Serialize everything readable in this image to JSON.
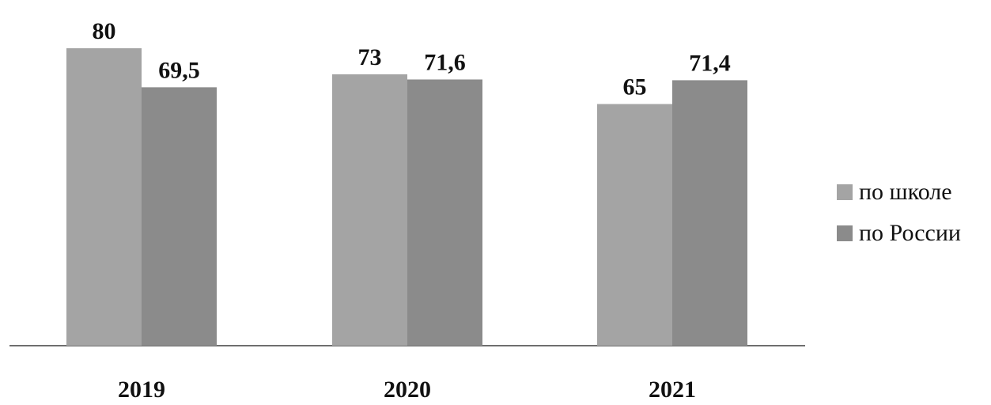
{
  "colors": {
    "school": "#a4a4a4",
    "russia": "#8b8b8b",
    "axis": "#6f6f6f",
    "text": "#111111"
  },
  "chart_data": {
    "type": "bar",
    "categories": [
      "2019",
      "2020",
      "2021"
    ],
    "series": [
      {
        "name": "по школе",
        "values": [
          80,
          73,
          65
        ],
        "labels": [
          "80",
          "73",
          "65"
        ]
      },
      {
        "name": "по России",
        "values": [
          69.5,
          71.6,
          71.4
        ],
        "labels": [
          "69,5",
          "71,6",
          "71,4"
        ]
      }
    ],
    "ylim": [
      0,
      92
    ],
    "grid": false,
    "legend_position": "right"
  }
}
